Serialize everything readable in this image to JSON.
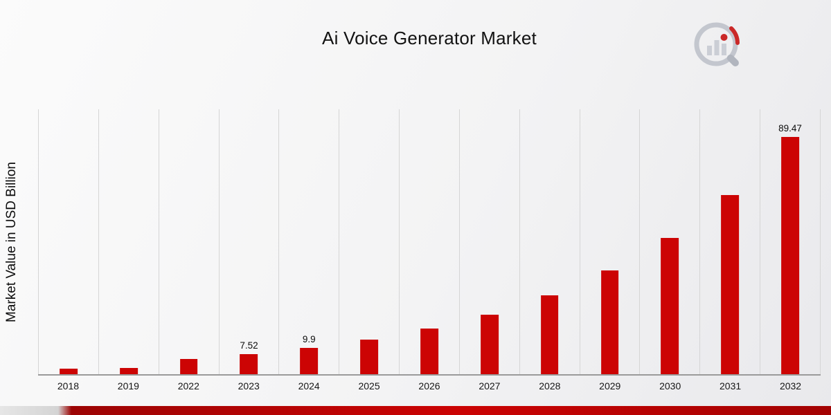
{
  "header": {
    "title": "Ai Voice Generator Market"
  },
  "axes": {
    "y_label": "Market Value in USD Billion"
  },
  "branding": {
    "logo_icon": "magnifier-bar-chart-logo",
    "footer_accent_color": "#b30404"
  },
  "colors": {
    "bar": "#cc0404",
    "gridline": "#d5d5d5",
    "baseline": "#9a9a9a",
    "background_start": "#fbfbfb",
    "background_end": "#e9e9ec"
  },
  "chart_data": {
    "type": "bar",
    "title": "Ai Voice Generator Market",
    "xlabel": "",
    "ylabel": "Market Value in USD Billion",
    "categories": [
      "2018",
      "2019",
      "2022",
      "2023",
      "2024",
      "2025",
      "2026",
      "2027",
      "2028",
      "2029",
      "2030",
      "2031",
      "2032"
    ],
    "values": [
      2.0,
      2.4,
      5.71,
      7.52,
      9.9,
      13.03,
      17.15,
      22.57,
      29.71,
      39.1,
      51.46,
      67.73,
      89.47
    ],
    "data_labels": [
      "",
      "",
      "",
      "7.52",
      "9.9",
      "",
      "",
      "",
      "",
      "",
      "",
      "",
      "89.47"
    ],
    "ylim": [
      0,
      100
    ],
    "grid": "vertical",
    "legend": "none",
    "bar_color": "#cc0404"
  }
}
